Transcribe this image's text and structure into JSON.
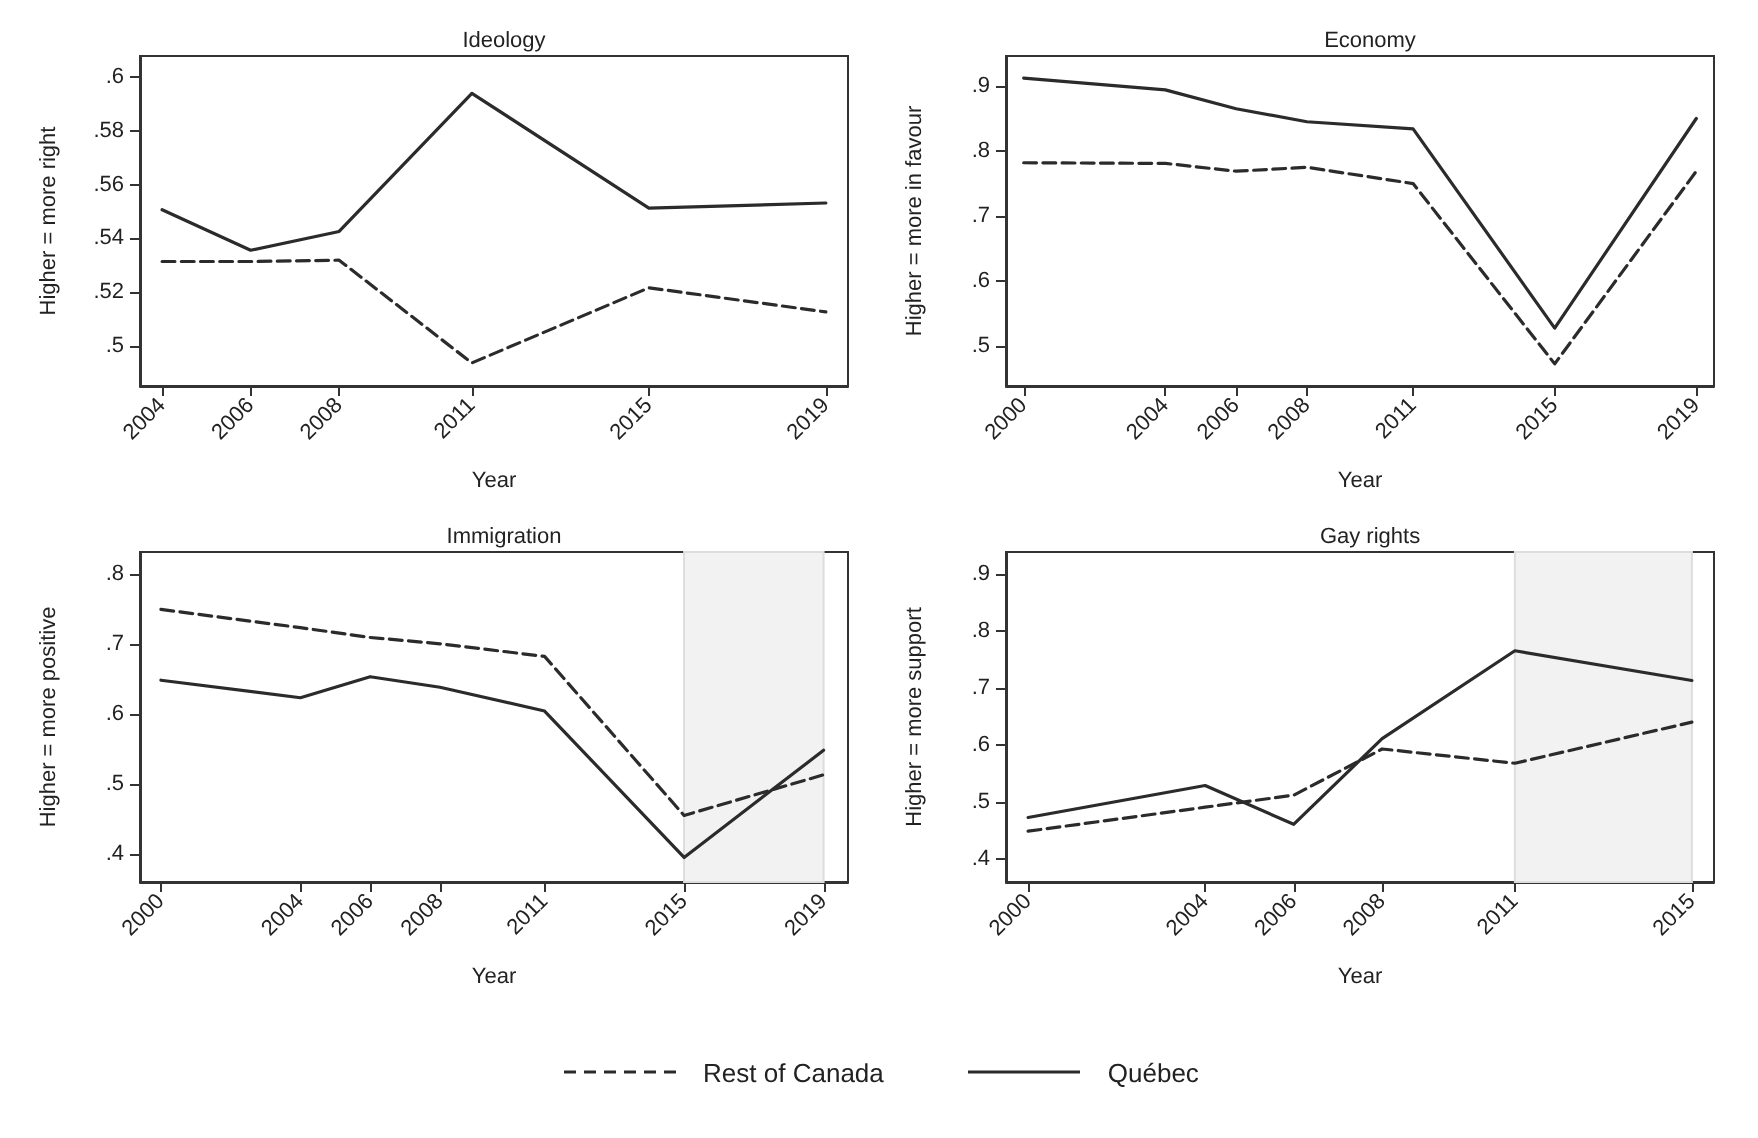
{
  "chart_data": [
    {
      "type": "line",
      "title": "Ideology",
      "xlabel": "Year",
      "ylabel": "Higher = more right",
      "x": [
        2004,
        2006,
        2008,
        2011,
        2015,
        2019
      ],
      "xlim": [
        2003.5,
        2019.5
      ],
      "xticks": [
        2004,
        2006,
        2008,
        2011,
        2015,
        2019
      ],
      "ylim": [
        0.485,
        0.608
      ],
      "yticks": [
        {
          "value": 0.5,
          "label": ".5"
        },
        {
          "value": 0.52,
          "label": ".52"
        },
        {
          "value": 0.54,
          "label": ".54"
        },
        {
          "value": 0.56,
          "label": ".56"
        },
        {
          "value": 0.58,
          "label": ".58"
        },
        {
          "value": 0.6,
          "label": ".6"
        }
      ],
      "grid": false,
      "marker": "none",
      "legend": false,
      "series": [
        {
          "color": "#2b2b2b",
          "line_style": "dashed",
          "values": [
            0.5314,
            0.5314,
            0.5319,
            0.4936,
            0.5216,
            0.5126
          ]
        },
        {
          "color": "#2b2b2b",
          "line_style": "solid",
          "values": [
            0.5507,
            0.5356,
            0.5426,
            0.5941,
            0.5513,
            0.5532
          ]
        }
      ]
    },
    {
      "type": "line",
      "title": "Economy",
      "xlabel": "Year",
      "ylabel": "Higher = more in favour",
      "x": [
        2000,
        2004,
        2006,
        2008,
        2011,
        2015,
        2019
      ],
      "xlim": [
        1999.5,
        2019.5
      ],
      "xticks": [
        2000,
        2004,
        2006,
        2008,
        2011,
        2015,
        2019
      ],
      "ylim": [
        0.439,
        0.946
      ],
      "yticks": [
        {
          "value": 0.5,
          "label": ".5"
        },
        {
          "value": 0.6,
          "label": ".6"
        },
        {
          "value": 0.7,
          "label": ".7"
        },
        {
          "value": 0.8,
          "label": ".8"
        },
        {
          "value": 0.9,
          "label": ".9"
        }
      ],
      "grid": false,
      "marker": "none",
      "legend": false,
      "series": [
        {
          "color": "#2b2b2b",
          "line_style": "dashed",
          "values": [
            0.782,
            0.781,
            0.769,
            0.775,
            0.75,
            0.473,
            0.769
          ]
        },
        {
          "color": "#2b2b2b",
          "line_style": "solid",
          "values": [
            0.912,
            0.894,
            0.865,
            0.845,
            0.834,
            0.528,
            0.85
          ]
        }
      ]
    },
    {
      "type": "line",
      "title": "Immigration",
      "xlabel": "Year",
      "ylabel": "Higher = more positive",
      "x": [
        2000,
        2004,
        2006,
        2008,
        2011,
        2015,
        2019
      ],
      "xlim": [
        1999.4,
        2019.7
      ],
      "xticks": [
        2000,
        2004,
        2006,
        2008,
        2011,
        2015,
        2019
      ],
      "ylim": [
        0.36,
        0.831
      ],
      "yticks": [
        {
          "value": 0.4,
          "label": ".4"
        },
        {
          "value": 0.5,
          "label": ".5"
        },
        {
          "value": 0.6,
          "label": ".6"
        },
        {
          "value": 0.7,
          "label": ".7"
        },
        {
          "value": 0.8,
          "label": ".8"
        }
      ],
      "grid": false,
      "marker": "none",
      "legend": false,
      "bands": [
        {
          "axis": "x",
          "from": 2015,
          "to": 2019,
          "color": "#f2f2f2"
        }
      ],
      "series": [
        {
          "color": "#2b2b2b",
          "line_style": "dashed",
          "values": [
            0.749,
            0.723,
            0.709,
            0.7,
            0.682,
            0.455,
            0.513
          ]
        },
        {
          "color": "#2b2b2b",
          "line_style": "solid",
          "values": [
            0.648,
            0.623,
            0.653,
            0.638,
            0.604,
            0.395,
            0.548
          ]
        }
      ]
    },
    {
      "type": "line",
      "title": "Gay rights",
      "xlabel": "Year",
      "ylabel": "Higher = more support",
      "x": [
        2000,
        2004,
        2006,
        2008,
        2011,
        2015
      ],
      "xlim": [
        1999.5,
        2015.5
      ],
      "xticks": [
        2000,
        2004,
        2006,
        2008,
        2011,
        2015
      ],
      "ylim": [
        0.36,
        0.938
      ],
      "yticks": [
        {
          "value": 0.4,
          "label": ".4"
        },
        {
          "value": 0.5,
          "label": ".5"
        },
        {
          "value": 0.6,
          "label": ".6"
        },
        {
          "value": 0.7,
          "label": ".7"
        },
        {
          "value": 0.8,
          "label": ".8"
        },
        {
          "value": 0.9,
          "label": ".9"
        }
      ],
      "grid": false,
      "marker": "none",
      "legend": "bottom",
      "bands": [
        {
          "axis": "x",
          "from": 2011,
          "to": 2015,
          "color": "#f2f2f2"
        }
      ],
      "series": [
        {
          "name": "Rest of Canada",
          "color": "#2b2b2b",
          "line_style": "dashed",
          "values": [
            0.449,
            0.491,
            0.512,
            0.593,
            0.568,
            0.64
          ]
        },
        {
          "name": "Québec",
          "color": "#2b2b2b",
          "line_style": "solid",
          "values": [
            0.473,
            0.529,
            0.461,
            0.611,
            0.765,
            0.713
          ]
        }
      ]
    }
  ]
}
